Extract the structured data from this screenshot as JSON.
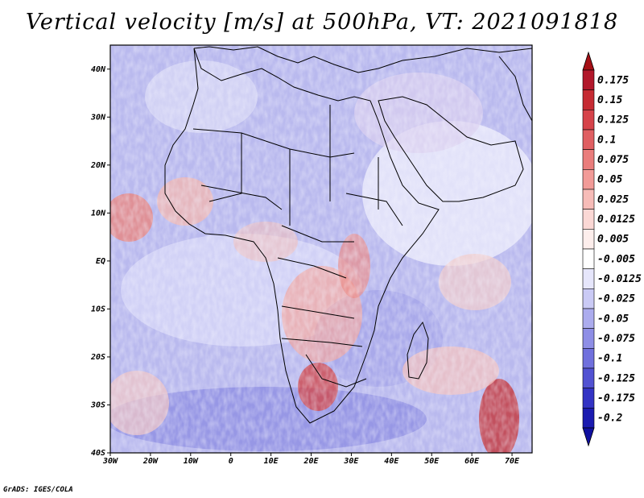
{
  "title": "Vertical velocity [m/s] at 500hPa, VT: 2021091818",
  "footer": "GrADS: IGES/COLA",
  "map": {
    "lon_range": [
      -30,
      75
    ],
    "lat_range": [
      -40,
      45
    ],
    "lon_ticks": [
      {
        "value": -30,
        "label": "30W"
      },
      {
        "value": -20,
        "label": "20W"
      },
      {
        "value": -10,
        "label": "10W"
      },
      {
        "value": 0,
        "label": "0"
      },
      {
        "value": 10,
        "label": "10E"
      },
      {
        "value": 20,
        "label": "20E"
      },
      {
        "value": 30,
        "label": "30E"
      },
      {
        "value": 40,
        "label": "40E"
      },
      {
        "value": 50,
        "label": "50E"
      },
      {
        "value": 60,
        "label": "60E"
      },
      {
        "value": 70,
        "label": "70E"
      }
    ],
    "lat_ticks": [
      {
        "value": 40,
        "label": "40N"
      },
      {
        "value": 30,
        "label": "30N"
      },
      {
        "value": 20,
        "label": "20N"
      },
      {
        "value": 10,
        "label": "10N"
      },
      {
        "value": 0,
        "label": "EQ"
      },
      {
        "value": -10,
        "label": "10S"
      },
      {
        "value": -20,
        "label": "20S"
      },
      {
        "value": -30,
        "label": "30S"
      },
      {
        "value": -40,
        "label": "40S"
      }
    ]
  },
  "colorbar": {
    "levels": [
      {
        "label": "0.175",
        "color": "#b2182b"
      },
      {
        "label": "0.15",
        "color": "#c62b33"
      },
      {
        "label": "0.125",
        "color": "#d6434a"
      },
      {
        "label": "0.1",
        "color": "#e05f62"
      },
      {
        "label": "0.075",
        "color": "#ea7d7c"
      },
      {
        "label": "0.05",
        "color": "#f29b98"
      },
      {
        "label": "0.025",
        "color": "#f7bcb8"
      },
      {
        "label": "0.0125",
        "color": "#fbd8d5"
      },
      {
        "label": "0.005",
        "color": "#fdeeec"
      },
      {
        "label": "-0.005",
        "color": "#ffffff"
      },
      {
        "label": "-0.0125",
        "color": "#e6e6fb"
      },
      {
        "label": "-0.025",
        "color": "#cacaf5"
      },
      {
        "label": "-0.05",
        "color": "#acacee"
      },
      {
        "label": "-0.075",
        "color": "#8e8ee6"
      },
      {
        "label": "-0.1",
        "color": "#7070dd"
      },
      {
        "label": "-0.125",
        "color": "#5252d2"
      },
      {
        "label": "-0.175",
        "color": "#3333c4"
      },
      {
        "label": "-0.2",
        "color": "#1b1bb0"
      }
    ],
    "top_arrow_color": "#a50f15",
    "bottom_arrow_color": "#1010a0"
  }
}
